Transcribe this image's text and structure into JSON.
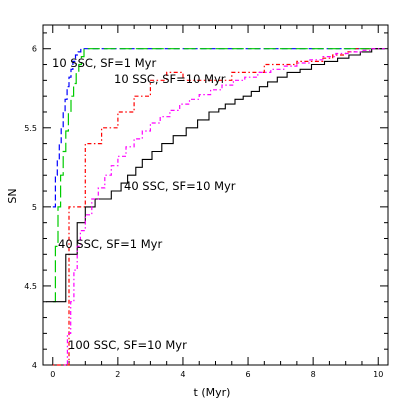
{
  "chart_data": {
    "type": "line",
    "xlabel": "t (Myr)",
    "ylabel": "SN",
    "xlim": [
      -0.3,
      10.3
    ],
    "ylim": [
      4.0,
      6.15
    ],
    "grid": false,
    "x_major_ticks": [
      0,
      2,
      4,
      6,
      8,
      10
    ],
    "x_tick_labels": [
      "0",
      "2",
      "4",
      "6",
      "8",
      "10"
    ],
    "y_major_ticks": [
      4,
      4.5,
      5,
      5.5,
      6
    ],
    "y_tick_labels": [
      "4",
      "4.5",
      "5",
      "5.5",
      "6"
    ],
    "series": [
      {
        "style": "dashed",
        "color": "#0000ff",
        "x": [
          0.0,
          0.08,
          0.08,
          0.14,
          0.14,
          0.2,
          0.2,
          0.26,
          0.26,
          0.32,
          0.32,
          0.38,
          0.38,
          0.44,
          0.44,
          0.5,
          0.5,
          0.56,
          0.56,
          0.62,
          0.62,
          0.7,
          0.7,
          0.78,
          0.78,
          0.86,
          0.86,
          10.2
        ],
        "y": [
          5.0,
          5.0,
          5.2,
          5.2,
          5.3,
          5.3,
          5.4,
          5.4,
          5.5,
          5.5,
          5.6,
          5.6,
          5.68,
          5.68,
          5.76,
          5.76,
          5.82,
          5.82,
          5.87,
          5.87,
          5.92,
          5.92,
          5.96,
          5.96,
          5.98,
          5.98,
          6.0,
          6.0
        ]
      },
      {
        "style": "dot-dash",
        "color": "#ff0000",
        "x": [
          0.0,
          0.5,
          0.5,
          1.0,
          1.0,
          1.5,
          1.5,
          2.0,
          2.0,
          2.5,
          2.5,
          3.0,
          3.0,
          3.5,
          3.5,
          4.0,
          4.0,
          4.5,
          4.5,
          5.0,
          5.0,
          5.5,
          5.5,
          6.5,
          6.5,
          7.5,
          7.5,
          8.3,
          8.3,
          8.6,
          8.6,
          9.0,
          9.0,
          9.3,
          9.3,
          10.0
        ],
        "y": [
          4.0,
          4.0,
          5.0,
          5.0,
          5.4,
          5.4,
          5.5,
          5.5,
          5.6,
          5.6,
          5.7,
          5.7,
          5.8,
          5.8,
          5.85,
          5.85,
          5.8,
          5.8,
          5.8,
          5.8,
          5.8,
          5.8,
          5.85,
          5.85,
          5.9,
          5.9,
          5.92,
          5.92,
          5.94,
          5.94,
          5.96,
          5.96,
          5.98,
          5.98,
          6.0,
          6.0
        ]
      },
      {
        "style": "long-dash",
        "color": "#00cc00",
        "x": [
          0.0,
          0.08,
          0.08,
          0.16,
          0.16,
          0.24,
          0.24,
          0.32,
          0.32,
          0.4,
          0.4,
          0.48,
          0.48,
          0.56,
          0.56,
          0.64,
          0.64,
          0.72,
          0.72,
          0.8,
          0.8,
          0.88,
          0.88,
          0.96,
          0.96,
          10.2
        ],
        "y": [
          4.4,
          4.4,
          4.75,
          4.75,
          5.0,
          5.0,
          5.2,
          5.2,
          5.35,
          5.35,
          5.48,
          5.48,
          5.6,
          5.6,
          5.7,
          5.7,
          5.78,
          5.78,
          5.85,
          5.85,
          5.9,
          5.9,
          5.95,
          5.95,
          6.0,
          6.0
        ]
      },
      {
        "style": "solid",
        "color": "#000000",
        "x": [
          -0.2,
          0.4,
          0.4,
          0.75,
          0.75,
          1.0,
          1.0,
          1.3,
          1.3,
          1.8,
          1.8,
          2.1,
          2.1,
          2.3,
          2.3,
          2.55,
          2.55,
          2.75,
          2.75,
          3.05,
          3.05,
          3.35,
          3.35,
          3.7,
          3.7,
          4.1,
          4.1,
          4.45,
          4.45,
          4.8,
          4.8,
          5.1,
          5.1,
          5.3,
          5.3,
          5.6,
          5.6,
          5.85,
          5.85,
          6.1,
          6.1,
          6.35,
          6.35,
          6.6,
          6.6,
          6.9,
          6.9,
          7.2,
          7.2,
          7.6,
          7.6,
          7.95,
          7.95,
          8.35,
          8.35,
          8.75,
          8.75,
          9.1,
          9.1,
          9.45,
          9.45,
          9.8,
          9.8,
          10.2
        ],
        "y": [
          4.4,
          4.4,
          4.7,
          4.7,
          4.9,
          4.9,
          5.0,
          5.0,
          5.05,
          5.05,
          5.1,
          5.1,
          5.15,
          5.15,
          5.2,
          5.2,
          5.25,
          5.25,
          5.3,
          5.3,
          5.35,
          5.35,
          5.4,
          5.4,
          5.45,
          5.45,
          5.5,
          5.5,
          5.55,
          5.55,
          5.6,
          5.6,
          5.62,
          5.62,
          5.65,
          5.65,
          5.68,
          5.68,
          5.7,
          5.7,
          5.73,
          5.73,
          5.76,
          5.76,
          5.79,
          5.79,
          5.82,
          5.82,
          5.85,
          5.85,
          5.87,
          5.87,
          5.9,
          5.9,
          5.92,
          5.92,
          5.94,
          5.94,
          5.96,
          5.96,
          5.98,
          5.98,
          6.0,
          6.0
        ]
      },
      {
        "style": "dot-dash",
        "color": "#ff00ff",
        "x": [
          0.35,
          0.45,
          0.45,
          0.55,
          0.55,
          0.65,
          0.65,
          0.75,
          0.75,
          0.85,
          0.85,
          1.0,
          1.0,
          1.2,
          1.2,
          1.4,
          1.4,
          1.6,
          1.6,
          1.8,
          1.8,
          2.0,
          2.0,
          2.25,
          2.25,
          2.5,
          2.5,
          2.75,
          2.75,
          3.0,
          3.0,
          3.3,
          3.3,
          3.6,
          3.6,
          3.9,
          3.9,
          4.2,
          4.2,
          4.5,
          4.5,
          4.85,
          4.85,
          5.2,
          5.2,
          5.55,
          5.55,
          5.9,
          5.9,
          6.3,
          6.3,
          6.7,
          6.7,
          7.1,
          7.1,
          7.5,
          7.5,
          7.9,
          7.9,
          8.3,
          8.3,
          8.7,
          8.7,
          9.1,
          9.1,
          9.5,
          9.5,
          9.8,
          9.8,
          10.2
        ],
        "y": [
          4.0,
          4.0,
          4.2,
          4.2,
          4.4,
          4.4,
          4.6,
          4.6,
          4.75,
          4.75,
          4.85,
          4.85,
          4.95,
          4.95,
          5.05,
          5.05,
          5.12,
          5.12,
          5.2,
          5.2,
          5.26,
          5.26,
          5.32,
          5.32,
          5.38,
          5.38,
          5.43,
          5.43,
          5.48,
          5.48,
          5.53,
          5.53,
          5.57,
          5.57,
          5.61,
          5.61,
          5.65,
          5.65,
          5.68,
          5.68,
          5.71,
          5.71,
          5.74,
          5.74,
          5.77,
          5.77,
          5.8,
          5.8,
          5.82,
          5.82,
          5.85,
          5.85,
          5.87,
          5.87,
          5.89,
          5.89,
          5.91,
          5.91,
          5.93,
          5.93,
          5.95,
          5.95,
          5.97,
          5.97,
          5.98,
          5.98,
          5.99,
          5.99,
          6.0,
          6.0
        ]
      }
    ],
    "annotations": [
      {
        "text": "10 SSC, SF=1 Myr",
        "color": "#0000ff"
      },
      {
        "text": "10 SSC, SF=10 Myr",
        "color": "#ff0000"
      },
      {
        "text": "40 SSC, SF=10 Myr",
        "color": "#000000"
      },
      {
        "text": "40 SSC, SF=1 Myr",
        "color": "#00cc00"
      },
      {
        "text": "100 SSC, SF=10 Myr",
        "color": "#ff00ff"
      }
    ]
  }
}
